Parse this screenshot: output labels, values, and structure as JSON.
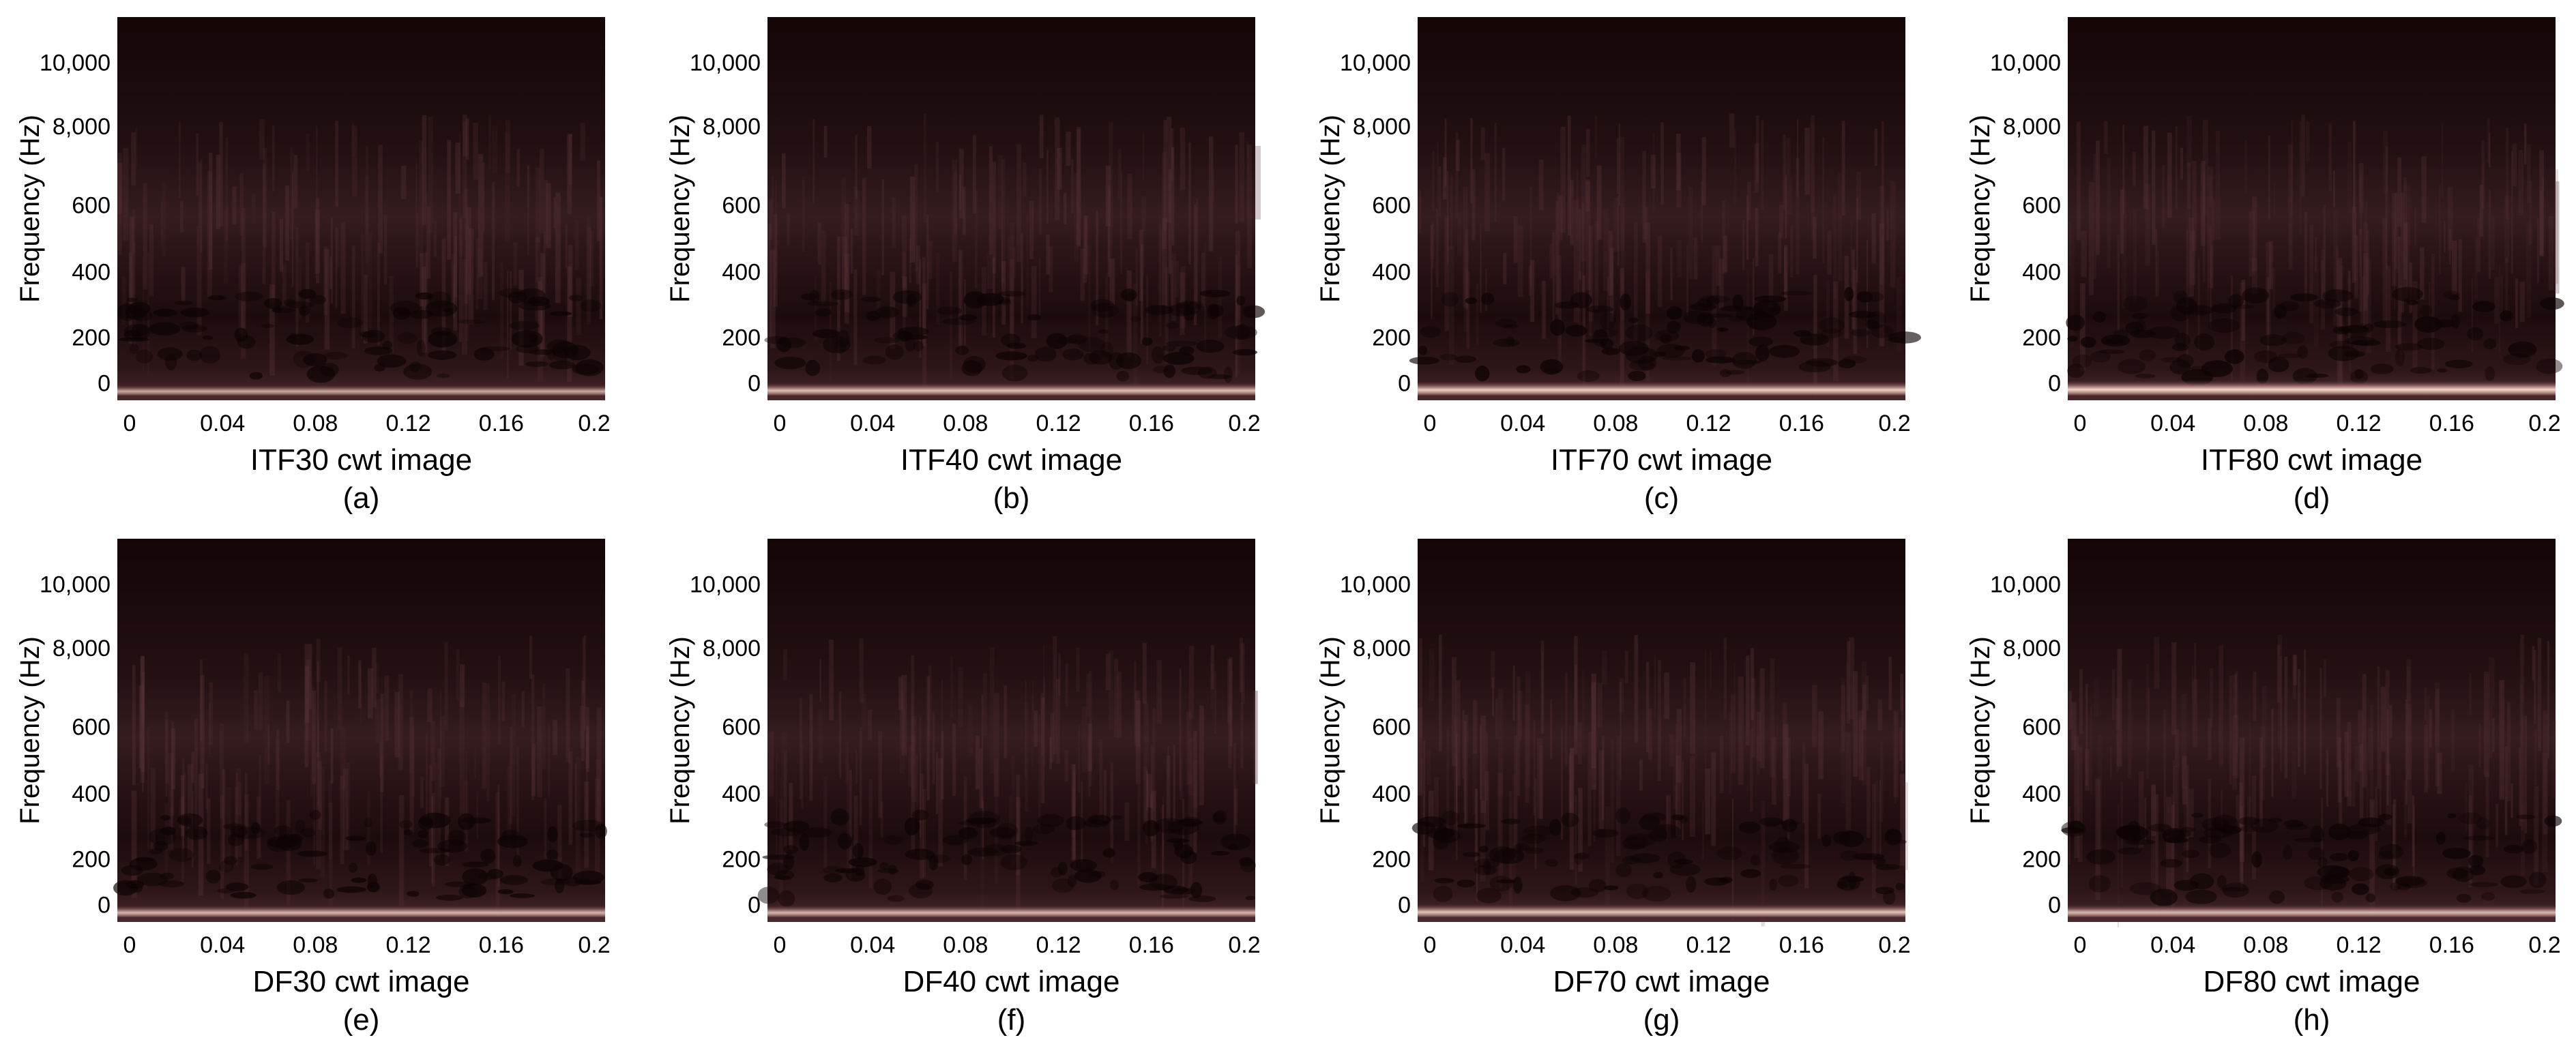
{
  "figure": {
    "panels": [
      {
        "label": "(a)",
        "title": "ITF30 cwt image",
        "band": 0.55
      },
      {
        "label": "(b)",
        "title": "ITF40 cwt image",
        "band": 0.75
      },
      {
        "label": "(c)",
        "title": "ITF70 cwt image",
        "band": 0.9
      },
      {
        "label": "(d)",
        "title": "ITF80 cwt image",
        "band": 1.0
      },
      {
        "label": "(e)",
        "title": "DF30 cwt image",
        "band": 0.65
      },
      {
        "label": "(f)",
        "title": "DF40 cwt image",
        "band": 0.65
      },
      {
        "label": "(g)",
        "title": "DF70 cwt image",
        "band": 0.8
      },
      {
        "label": "(h)",
        "title": "DF80 cwt image",
        "band": 0.7
      }
    ]
  },
  "chart_data": {
    "type": "heatmap",
    "description_values": "Continuous wavelet transform scalograms; magnitude shown as dark-to-pink colour",
    "x_ticks": [
      "0",
      "0.04",
      "0.08",
      "0.12",
      "0.16",
      "0.2"
    ],
    "x_values": [
      0,
      0.04,
      0.08,
      0.12,
      0.16,
      0.2
    ],
    "xlim": [
      0,
      0.2
    ],
    "y_ticks": [
      "0",
      "200",
      "400",
      "600",
      "8,000",
      "10,000"
    ],
    "ylabel": "Frequency (Hz)",
    "colors": {
      "low": "#1a0a0c",
      "mid": "#6e4448",
      "high": "#f3d9c9"
    }
  }
}
